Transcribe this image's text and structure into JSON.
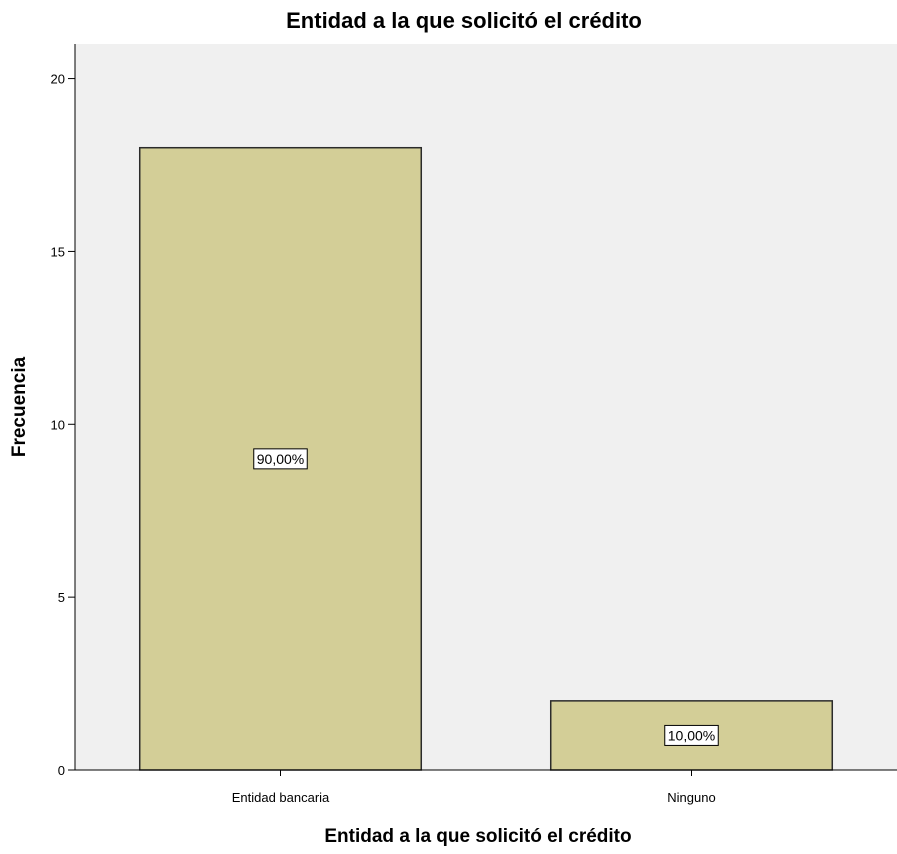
{
  "chart_data": {
    "type": "bar",
    "title": "Entidad a la que solicitó el crédito",
    "xlabel": "Entidad a la que solicitó el crédito",
    "ylabel": "Frecuencia",
    "categories": [
      "Entidad bancaria",
      "Ninguno"
    ],
    "values": [
      18,
      2
    ],
    "data_labels": [
      "90,00%",
      "10,00%"
    ],
    "ylim": [
      0,
      21
    ],
    "yticks": [
      0,
      5,
      10,
      15,
      20
    ],
    "grid": false,
    "colors": {
      "plot_background": "#f0f0f0",
      "bar_fill": "#d3ce97",
      "bar_stroke": "#2b2b2b"
    }
  }
}
